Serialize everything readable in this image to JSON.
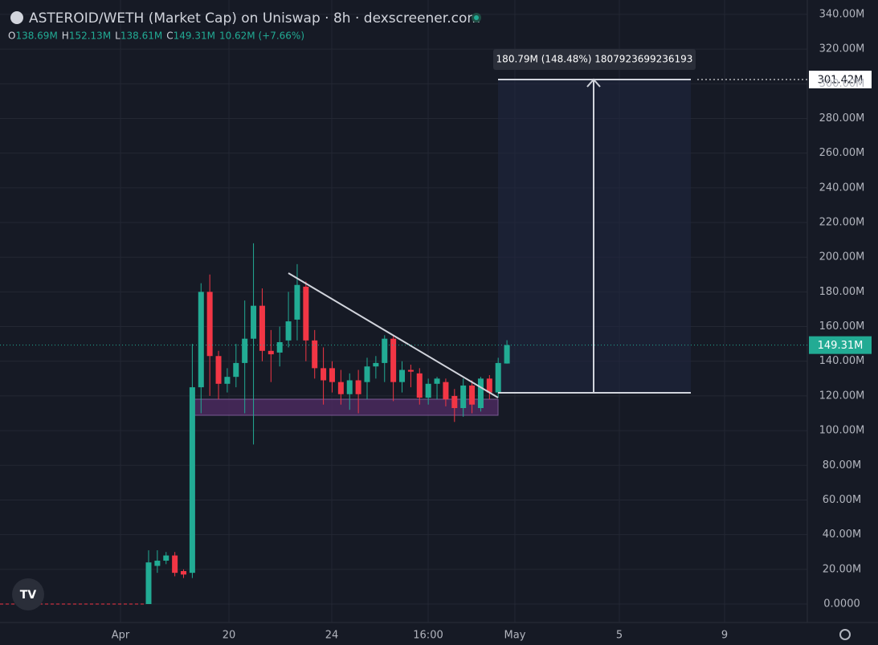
{
  "chart_data": {
    "type": "candlestick",
    "title": "ASTEROID/WETH (Market Cap) on Uniswap · 8h · dexscreener.com",
    "legend_values": [
      {
        "key": "O",
        "value": "138.69M"
      },
      {
        "key": "H",
        "value": "152.13M"
      },
      {
        "key": "L",
        "value": "138.61M"
      },
      {
        "key": "C",
        "value": "149.31M"
      }
    ],
    "change": "10.62M (+7.66%)",
    "up_color": "#22ab94",
    "down_color": "#f23645",
    "open": [
      0,
      22,
      25,
      28,
      19,
      18,
      125,
      180,
      143,
      127,
      131,
      139,
      153,
      172,
      146,
      145,
      152,
      164,
      183,
      152,
      136,
      136,
      128,
      121,
      129,
      128,
      137,
      139,
      153,
      128,
      135,
      133,
      119,
      127,
      128,
      120,
      113,
      126,
      113,
      130,
      122,
      138.69
    ],
    "high": [
      31,
      31,
      30,
      30,
      20,
      150,
      185,
      190,
      146,
      136,
      150,
      175,
      208,
      182,
      158,
      160,
      180,
      196,
      186,
      158,
      148,
      140,
      135,
      133,
      135,
      142,
      143,
      155,
      155,
      140,
      138,
      136,
      130,
      131,
      130,
      124,
      130,
      129,
      131,
      132,
      142,
      152.13
    ],
    "low": [
      0,
      18,
      23,
      16,
      15,
      15,
      110,
      120,
      118,
      122,
      125,
      110,
      92,
      140,
      128,
      137,
      148,
      152,
      140,
      130,
      115,
      122,
      115,
      112,
      110,
      118,
      130,
      128,
      117,
      122,
      125,
      115,
      115,
      118,
      114,
      105,
      108,
      110,
      111,
      118,
      119,
      138.61
    ],
    "close": [
      24,
      25,
      28,
      18,
      17,
      125,
      180,
      143,
      127,
      131,
      139,
      153,
      172,
      146,
      144,
      151,
      163,
      184,
      152,
      136,
      129,
      128,
      121,
      129,
      121,
      137,
      139,
      153,
      128,
      135,
      134,
      119,
      127,
      130,
      118,
      113,
      126,
      115,
      130,
      122,
      139,
      149.31
    ],
    "x_labels": [
      "Apr",
      "20",
      "24",
      "16:00",
      "May",
      "5",
      "9"
    ],
    "ylim": [
      -10.65,
      348.3
    ],
    "yticks": [
      {
        "value": 0,
        "label": "0.0000"
      },
      {
        "value": 20,
        "label": "20.00M"
      },
      {
        "value": 40,
        "label": "40.00M"
      },
      {
        "value": 60,
        "label": "60.00M"
      },
      {
        "value": 80,
        "label": "80.00M"
      },
      {
        "value": 100,
        "label": "100.00M"
      },
      {
        "value": 120,
        "label": "120.00M"
      },
      {
        "value": 140,
        "label": "140.00M"
      },
      {
        "value": 160,
        "label": "160.00M"
      },
      {
        "value": 180,
        "label": "180.00M"
      },
      {
        "value": 200,
        "label": "200.00M"
      },
      {
        "value": 220,
        "label": "220.00M"
      },
      {
        "value": 240,
        "label": "240.00M"
      },
      {
        "value": 260,
        "label": "260.00M"
      },
      {
        "value": 280,
        "label": "280.00M"
      },
      {
        "value": 300,
        "label": "300.00M"
      },
      {
        "value": 320,
        "label": "320.00M"
      },
      {
        "value": 340,
        "label": "340.00M"
      }
    ],
    "last_price": {
      "value": 149.31,
      "label": "149.31M"
    },
    "measure_target": "301.42M",
    "measure_text": "180.79M (148.48%) 1807923699236193",
    "grid": true
  }
}
